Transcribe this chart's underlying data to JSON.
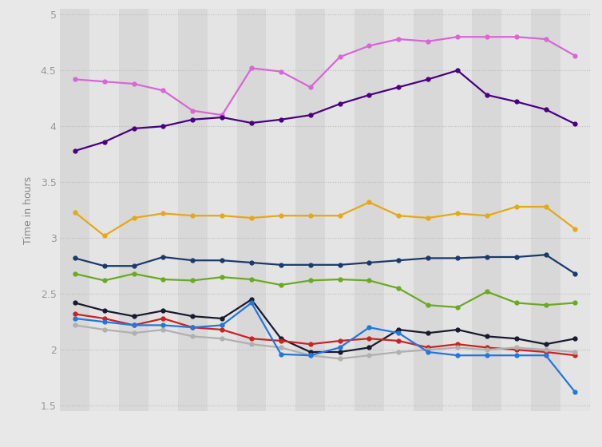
{
  "ylabel": "Time in hours",
  "ylim": [
    1.45,
    5.05
  ],
  "yticks": [
    1.5,
    2.0,
    2.5,
    3.0,
    3.5,
    4.0,
    4.5,
    5.0
  ],
  "ytick_labels": [
    "1.5",
    "2",
    "2.5",
    "3",
    "3.5",
    "4",
    "4.5",
    "5"
  ],
  "background_color": "#e8e8e8",
  "plot_background_light": "#e0e0e0",
  "plot_background_dark": "#d0d0d0",
  "n_points": 18,
  "series": [
    {
      "color": "#d966d6",
      "linewidth": 1.6,
      "markersize": 3.5,
      "values": [
        4.42,
        4.4,
        4.38,
        4.32,
        4.14,
        4.1,
        4.52,
        4.49,
        4.35,
        4.62,
        4.72,
        4.78,
        4.76,
        4.8,
        4.8,
        4.8,
        4.78,
        4.63
      ]
    },
    {
      "color": "#4a0080",
      "linewidth": 1.6,
      "markersize": 3.5,
      "values": [
        3.78,
        3.86,
        3.98,
        4.0,
        4.06,
        4.08,
        4.03,
        4.06,
        4.1,
        4.2,
        4.28,
        4.35,
        4.42,
        4.5,
        4.28,
        4.22,
        4.15,
        4.02
      ]
    },
    {
      "color": "#e6a817",
      "linewidth": 1.6,
      "markersize": 3.5,
      "values": [
        3.23,
        3.02,
        3.18,
        3.22,
        3.2,
        3.2,
        3.18,
        3.2,
        3.2,
        3.2,
        3.32,
        3.2,
        3.18,
        3.22,
        3.2,
        3.28,
        3.28,
        3.08
      ]
    },
    {
      "color": "#1a3a6b",
      "linewidth": 1.6,
      "markersize": 3.5,
      "values": [
        2.82,
        2.75,
        2.75,
        2.83,
        2.8,
        2.8,
        2.78,
        2.76,
        2.76,
        2.76,
        2.78,
        2.8,
        2.82,
        2.82,
        2.83,
        2.83,
        2.85,
        2.68
      ]
    },
    {
      "color": "#6aaa20",
      "linewidth": 1.6,
      "markersize": 3.5,
      "values": [
        2.68,
        2.62,
        2.68,
        2.63,
        2.62,
        2.65,
        2.63,
        2.58,
        2.62,
        2.63,
        2.62,
        2.55,
        2.4,
        2.38,
        2.52,
        2.42,
        2.4,
        2.42
      ]
    },
    {
      "color": "#1a1a2e",
      "linewidth": 1.6,
      "markersize": 3.5,
      "values": [
        2.42,
        2.35,
        2.3,
        2.35,
        2.3,
        2.28,
        2.45,
        2.1,
        1.98,
        1.98,
        2.02,
        2.18,
        2.15,
        2.18,
        2.12,
        2.1,
        2.05,
        2.1
      ]
    },
    {
      "color": "#cc2222",
      "linewidth": 1.6,
      "markersize": 3.5,
      "values": [
        2.32,
        2.28,
        2.22,
        2.28,
        2.2,
        2.18,
        2.1,
        2.08,
        2.05,
        2.08,
        2.1,
        2.08,
        2.02,
        2.05,
        2.02,
        2.0,
        1.98,
        1.95
      ]
    },
    {
      "color": "#b0b0b0",
      "linewidth": 1.6,
      "markersize": 3.5,
      "values": [
        2.22,
        2.18,
        2.15,
        2.18,
        2.12,
        2.1,
        2.05,
        2.02,
        1.95,
        1.92,
        1.95,
        1.98,
        2.0,
        2.02,
        2.0,
        2.02,
        2.0,
        1.98
      ]
    },
    {
      "color": "#2277dd",
      "linewidth": 1.6,
      "markersize": 3.5,
      "values": [
        2.28,
        2.25,
        2.22,
        2.22,
        2.2,
        2.22,
        2.42,
        1.96,
        1.95,
        2.02,
        2.2,
        2.15,
        1.98,
        1.95,
        1.95,
        1.95,
        1.95,
        1.62
      ]
    }
  ],
  "grid_color": "#bbbbbb",
  "grid_linestyle": ":",
  "col_colors": [
    "#d8d8d8",
    "#e4e4e4"
  ]
}
